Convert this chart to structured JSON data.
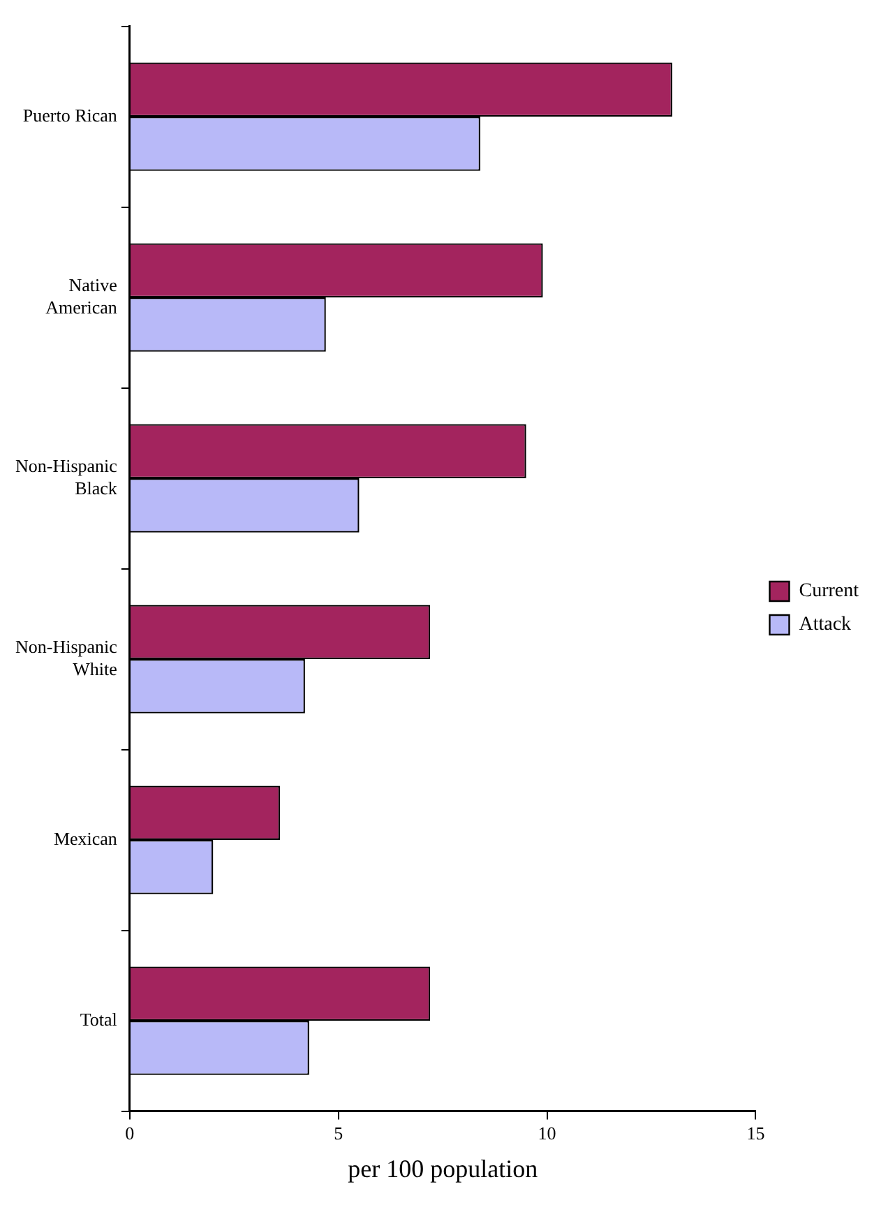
{
  "chart_data": {
    "type": "bar",
    "orientation": "horizontal",
    "xlabel": "per 100 population",
    "categories": [
      "Puerto Rican",
      "Native American",
      "Non-Hispanic Black",
      "Non-Hispanic White",
      "Mexican",
      "Total"
    ],
    "series": [
      {
        "name": "Current",
        "color": "#a3245e",
        "values": [
          13.0,
          9.9,
          9.5,
          7.2,
          3.6,
          7.2
        ]
      },
      {
        "name": "Attack",
        "color": "#b8b9f8",
        "values": [
          8.4,
          4.7,
          5.5,
          4.2,
          2.0,
          4.3
        ]
      }
    ],
    "xlim": [
      0,
      15
    ],
    "xticks": [
      0,
      5,
      10,
      15
    ],
    "grid": false,
    "legend": "right"
  }
}
